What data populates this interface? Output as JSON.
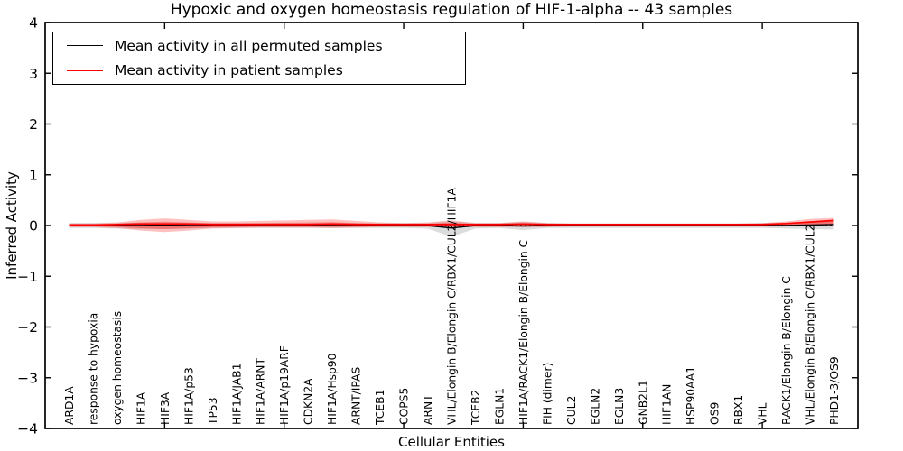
{
  "title": "Hypoxic and oxygen homeostasis regulation of HIF-1-alpha -- 43 samples",
  "legend": {
    "items": [
      {
        "label": "Mean activity in all permuted samples",
        "color": "#000000"
      },
      {
        "label": "Mean activity in patient samples",
        "color": "#ff0000"
      }
    ]
  },
  "chart_data": {
    "type": "line",
    "title": "Hypoxic and oxygen homeostasis regulation of HIF-1-alpha -- 43 samples",
    "xlabel": "Cellular Entities",
    "ylabel": "Inferred Activity",
    "ylim": [
      -4,
      4
    ],
    "yticks": [
      -4,
      -3,
      -2,
      -1,
      0,
      1,
      2,
      3,
      4
    ],
    "xticks": [
      5,
      10,
      15,
      20,
      25,
      30
    ],
    "grid": false,
    "legend_position": "upper left",
    "zero_line": true,
    "categories": [
      "ARD1A",
      "response to hypoxia",
      "oxygen homeostasis",
      "HIF1A",
      "HIF3A",
      "HIF1A/p53",
      "TP53",
      "HIF1A/JAB1",
      "HIF1A/ARNT",
      "HIF1A/p19ARF",
      "CDKN2A",
      "HIF1A/Hsp90",
      "ARNT/IPAS",
      "TCEB1",
      "COPS5",
      "ARNT",
      "VHL/Elongin B/Elongin C/RBX1/CUL2/HIF1A",
      "TCEB2",
      "EGLN1",
      "HIF1A/RACK1/Elongin B/Elongin C",
      "FIH (dimer)",
      "CUL2",
      "EGLN2",
      "EGLN3",
      "GNB2L1",
      "HIF1AN",
      "HSP90AA1",
      "OS9",
      "RBX1",
      "VHL",
      "RACK1/Elongin B/Elongin C",
      "VHL/Elongin B/Elongin C/RBX1/CUL2",
      "PHD1-3/OS9"
    ],
    "series": [
      {
        "name": "Mean activity in all permuted samples",
        "color": "#000000",
        "values": [
          0,
          0,
          0,
          0,
          0.01,
          0,
          0,
          0,
          0,
          0,
          0,
          0,
          0,
          0,
          0,
          0,
          -0.05,
          0,
          0,
          -0.01,
          0,
          0,
          0,
          0,
          0,
          0,
          0,
          0,
          0,
          0,
          0,
          0.01,
          0.02
        ]
      },
      {
        "name": "Mean activity in patient samples",
        "color": "#ff0000",
        "values": [
          0.01,
          0.01,
          0.02,
          0.03,
          0.03,
          0.03,
          0.02,
          0.02,
          0.02,
          0.02,
          0.02,
          0.03,
          0.02,
          0.02,
          0.02,
          0.02,
          0.02,
          0.02,
          0.02,
          0.03,
          0.02,
          0.02,
          0.02,
          0.02,
          0.02,
          0.02,
          0.02,
          0.02,
          0.02,
          0.02,
          0.04,
          0.07,
          0.1
        ]
      }
    ],
    "bands": [
      {
        "name": "permuted samples range",
        "color": "#c9c9c9",
        "lower": [
          -0.05,
          -0.05,
          -0.06,
          -0.07,
          -0.07,
          -0.06,
          -0.05,
          -0.05,
          -0.05,
          -0.05,
          -0.05,
          -0.05,
          -0.05,
          -0.05,
          -0.05,
          -0.06,
          -0.22,
          -0.06,
          -0.05,
          -0.09,
          -0.05,
          -0.05,
          -0.05,
          -0.05,
          -0.05,
          -0.05,
          -0.05,
          -0.05,
          -0.05,
          -0.05,
          -0.06,
          -0.07,
          -0.08
        ],
        "upper": [
          0.05,
          0.05,
          0.05,
          0.06,
          0.06,
          0.05,
          0.05,
          0.05,
          0.05,
          0.05,
          0.05,
          0.05,
          0.05,
          0.05,
          0.05,
          0.05,
          0.08,
          0.05,
          0.05,
          0.07,
          0.05,
          0.04,
          0.04,
          0.04,
          0.04,
          0.04,
          0.04,
          0.04,
          0.04,
          0.05,
          0.06,
          0.08,
          0.09
        ]
      },
      {
        "name": "patient samples range",
        "color": "#ff0000",
        "lower": [
          -0.03,
          -0.03,
          -0.05,
          -0.1,
          -0.13,
          -0.1,
          -0.06,
          -0.05,
          -0.04,
          -0.04,
          -0.04,
          -0.05,
          -0.04,
          -0.03,
          -0.03,
          -0.03,
          -0.04,
          -0.03,
          -0.03,
          -0.03,
          -0.03,
          -0.02,
          -0.02,
          -0.02,
          -0.02,
          -0.02,
          -0.02,
          -0.02,
          -0.02,
          -0.02,
          -0.02,
          0.0,
          0.02
        ],
        "upper": [
          0.04,
          0.04,
          0.06,
          0.11,
          0.14,
          0.11,
          0.08,
          0.08,
          0.09,
          0.1,
          0.11,
          0.12,
          0.09,
          0.06,
          0.05,
          0.06,
          0.1,
          0.05,
          0.05,
          0.08,
          0.05,
          0.04,
          0.04,
          0.04,
          0.04,
          0.04,
          0.04,
          0.04,
          0.04,
          0.05,
          0.08,
          0.13,
          0.15
        ]
      }
    ]
  }
}
